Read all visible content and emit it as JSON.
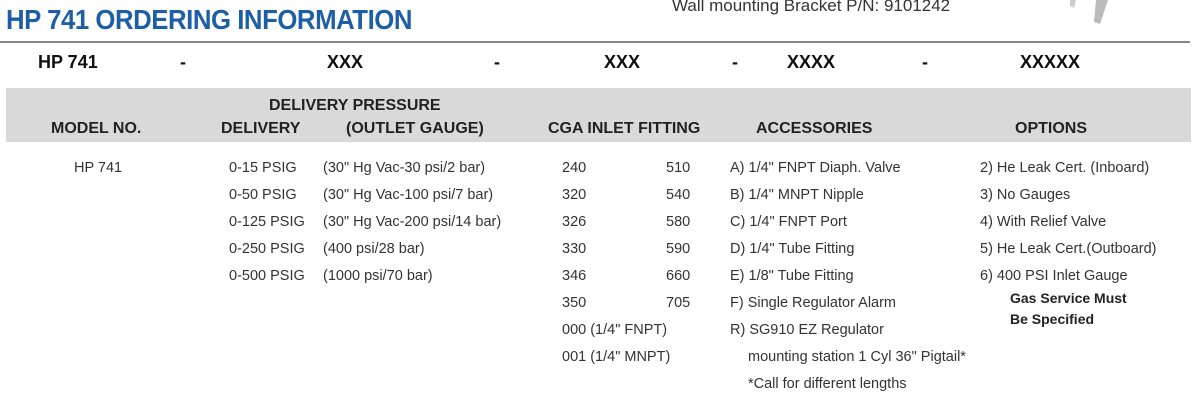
{
  "title": "HP 741 ORDERING INFORMATION",
  "bracket_note": "Wall mounting Bracket P/N: 9101242",
  "code": [
    "HP 741",
    "-",
    "XXX",
    "-",
    "XXX",
    "-",
    "XXXX",
    "-",
    "XXXXX"
  ],
  "headers": {
    "model": "MODEL NO.",
    "delivery_pressure": "DELIVERY PRESSURE",
    "delivery": "DELIVERY",
    "outlet_gauge": "(OUTLET GAUGE)",
    "cga": "CGA INLET FITTING",
    "accessories": "ACCESSORIES",
    "options": "OPTIONS"
  },
  "model": "HP 741",
  "delivery": [
    "0-15 PSIG",
    "0-50 PSIG",
    "0-125 PSIG",
    "0-250 PSIG",
    "0-500 PSIG"
  ],
  "gauge": [
    "(30\" Hg Vac-30 psi/2 bar)",
    "(30\" Hg Vac-100 psi/7 bar)",
    "(30\" Hg Vac-200 psi/14 bar)",
    "(400 psi/28 bar)",
    "(1000 psi/70 bar)"
  ],
  "cga_left": [
    "240",
    "320",
    "326",
    "330",
    "346",
    "350",
    "000 (1/4\" FNPT)",
    "001 (1/4\" MNPT)"
  ],
  "cga_right": [
    "510",
    "540",
    "580",
    "590",
    "660",
    "705"
  ],
  "accessories": [
    "A) 1/4\" FNPT Diaph. Valve",
    "B) 1/4\" MNPT Nipple",
    "C) 1/4\" FNPT Port",
    "D) 1/4\" Tube Fitting",
    "E) 1/8\" Tube Fitting",
    "F) Single Regulator Alarm",
    "R) SG910 EZ Regulator",
    "mounting station 1 Cyl 36\" Pigtail*",
    "*Call for different lengths"
  ],
  "options": [
    "2) He Leak Cert. (Inboard)",
    "3) No Gauges",
    "4) With Relief Valve",
    "5) He Leak Cert.(Outboard)",
    "6) 400 PSI Inlet Gauge"
  ],
  "options_note": [
    "Gas Service Must",
    "Be Specified"
  ]
}
